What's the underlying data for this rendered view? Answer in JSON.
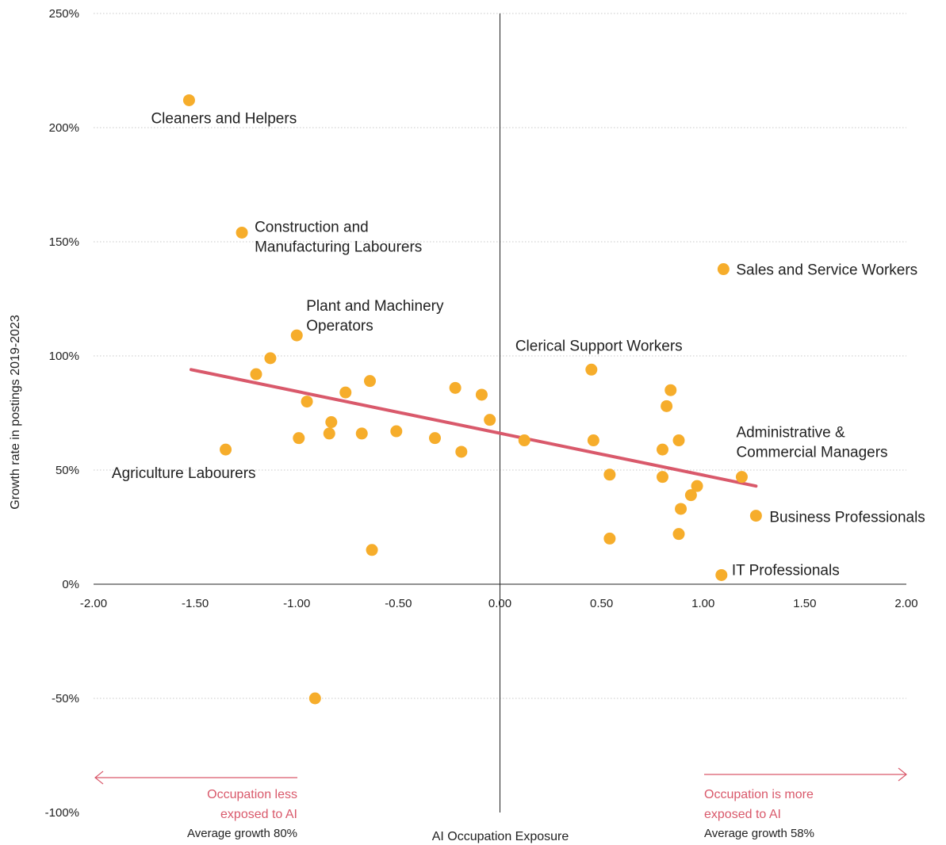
{
  "chart_data": {
    "type": "scatter",
    "xlabel": "AI Occupation Exposure",
    "ylabel": "Growth rate in postings 2019-2023",
    "xlim": [
      -2.0,
      2.0
    ],
    "ylim": [
      -100,
      250
    ],
    "x_ticks": [
      "-2.00",
      "-1.50",
      "-1.00",
      "-0.50",
      "0.00",
      "0.50",
      "1.00",
      "1.50",
      "2.00"
    ],
    "x_tick_values": [
      -2.0,
      -1.5,
      -1.0,
      -0.5,
      0.0,
      0.5,
      1.0,
      1.5,
      2.0
    ],
    "y_ticks": [
      "-100%",
      "-50%",
      "0%",
      "50%",
      "100%",
      "150%",
      "200%",
      "250%"
    ],
    "y_tick_values": [
      -100,
      -50,
      0,
      50,
      100,
      150,
      200,
      250
    ],
    "grid": "horizontal dotted",
    "point_color": "#f6ad2b",
    "trend_color": "#d9596b",
    "trendline": {
      "x": [
        -1.52,
        1.26
      ],
      "y": [
        94,
        43
      ]
    },
    "points": [
      {
        "x": -1.53,
        "y": 212,
        "label": "Cleaners and Helpers"
      },
      {
        "x": -1.27,
        "y": 154,
        "label": "Construction and\nManufacturing Labourers"
      },
      {
        "x": -1.0,
        "y": 109,
        "label": "Plant and Machinery\nOperators"
      },
      {
        "x": -1.35,
        "y": 59,
        "label": "Agriculture Labourers"
      },
      {
        "x": 1.1,
        "y": 138,
        "label": "Sales and Service Workers"
      },
      {
        "x": 0.45,
        "y": 94,
        "label": "Clerical Support Workers"
      },
      {
        "x": 1.19,
        "y": 47,
        "label": "Administrative &\nCommercial Managers"
      },
      {
        "x": 1.26,
        "y": 30,
        "label": "Business Professionals"
      },
      {
        "x": 1.09,
        "y": 4,
        "label": "IT Professionals"
      },
      {
        "x": -1.13,
        "y": 99,
        "label": ""
      },
      {
        "x": -1.2,
        "y": 92,
        "label": ""
      },
      {
        "x": -0.95,
        "y": 80,
        "label": ""
      },
      {
        "x": -0.99,
        "y": 64,
        "label": ""
      },
      {
        "x": -0.84,
        "y": 66,
        "label": ""
      },
      {
        "x": -0.83,
        "y": 71,
        "label": ""
      },
      {
        "x": -0.76,
        "y": 84,
        "label": ""
      },
      {
        "x": -0.68,
        "y": 66,
        "label": ""
      },
      {
        "x": -0.64,
        "y": 89,
        "label": ""
      },
      {
        "x": -0.51,
        "y": 67,
        "label": ""
      },
      {
        "x": -0.63,
        "y": 15,
        "label": ""
      },
      {
        "x": -0.91,
        "y": -50,
        "label": ""
      },
      {
        "x": -0.32,
        "y": 64,
        "label": ""
      },
      {
        "x": -0.22,
        "y": 86,
        "label": ""
      },
      {
        "x": -0.19,
        "y": 58,
        "label": ""
      },
      {
        "x": -0.09,
        "y": 83,
        "label": ""
      },
      {
        "x": -0.05,
        "y": 72,
        "label": ""
      },
      {
        "x": 0.12,
        "y": 63,
        "label": ""
      },
      {
        "x": 0.46,
        "y": 63,
        "label": ""
      },
      {
        "x": 0.54,
        "y": 48,
        "label": ""
      },
      {
        "x": 0.54,
        "y": 20,
        "label": ""
      },
      {
        "x": 0.8,
        "y": 59,
        "label": ""
      },
      {
        "x": 0.8,
        "y": 47,
        "label": ""
      },
      {
        "x": 0.82,
        "y": 78,
        "label": ""
      },
      {
        "x": 0.84,
        "y": 85,
        "label": ""
      },
      {
        "x": 0.88,
        "y": 63,
        "label": ""
      },
      {
        "x": 0.88,
        "y": 22,
        "label": ""
      },
      {
        "x": 0.89,
        "y": 33,
        "label": ""
      },
      {
        "x": 0.94,
        "y": 39,
        "label": ""
      },
      {
        "x": 0.97,
        "y": 43,
        "label": ""
      }
    ],
    "annotations": {
      "left": {
        "line1": "Occupation less",
        "line2": "exposed to AI",
        "line3": "Average growth 80%"
      },
      "right": {
        "line1": "Occupation is more",
        "line2": "exposed to AI",
        "line3": "Average growth 58%"
      }
    }
  }
}
